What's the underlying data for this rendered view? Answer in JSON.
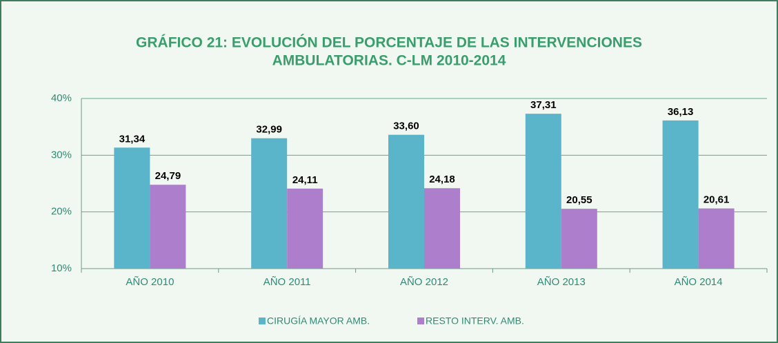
{
  "chart_data": {
    "type": "bar",
    "title": [
      "GRÁFICO 21: EVOLUCIÓN DEL PORCENTAJE DE LAS INTERVENCIONES",
      "AMBULATORIAS. C-LM 2010-2014"
    ],
    "categories": [
      "AÑO 2010",
      "AÑO 2011",
      "AÑO 2012",
      "AÑO 2013",
      "AÑO 2014"
    ],
    "series": [
      {
        "name": "CIRUGÍA MAYOR AMB.",
        "color": "#5ab4ca",
        "values": [
          31.34,
          32.99,
          33.6,
          37.31,
          36.13
        ],
        "value_labels": [
          "31,34",
          "32,99",
          "33,60",
          "37,31",
          "36,13"
        ]
      },
      {
        "name": "RESTO INTERV. AMB.",
        "color": "#ad7ecc",
        "values": [
          24.79,
          24.11,
          24.18,
          20.55,
          20.61
        ],
        "value_labels": [
          "24,79",
          "24,11",
          "24,18",
          "20,55",
          "20,61"
        ]
      }
    ],
    "ylim": [
      10,
      40
    ],
    "yticks": [
      {
        "value": 10,
        "label": "10%"
      },
      {
        "value": 20,
        "label": "20%"
      },
      {
        "value": 30,
        "label": "30%"
      },
      {
        "value": 40,
        "label": "40%"
      }
    ],
    "grid": true,
    "legend": "bottom"
  }
}
